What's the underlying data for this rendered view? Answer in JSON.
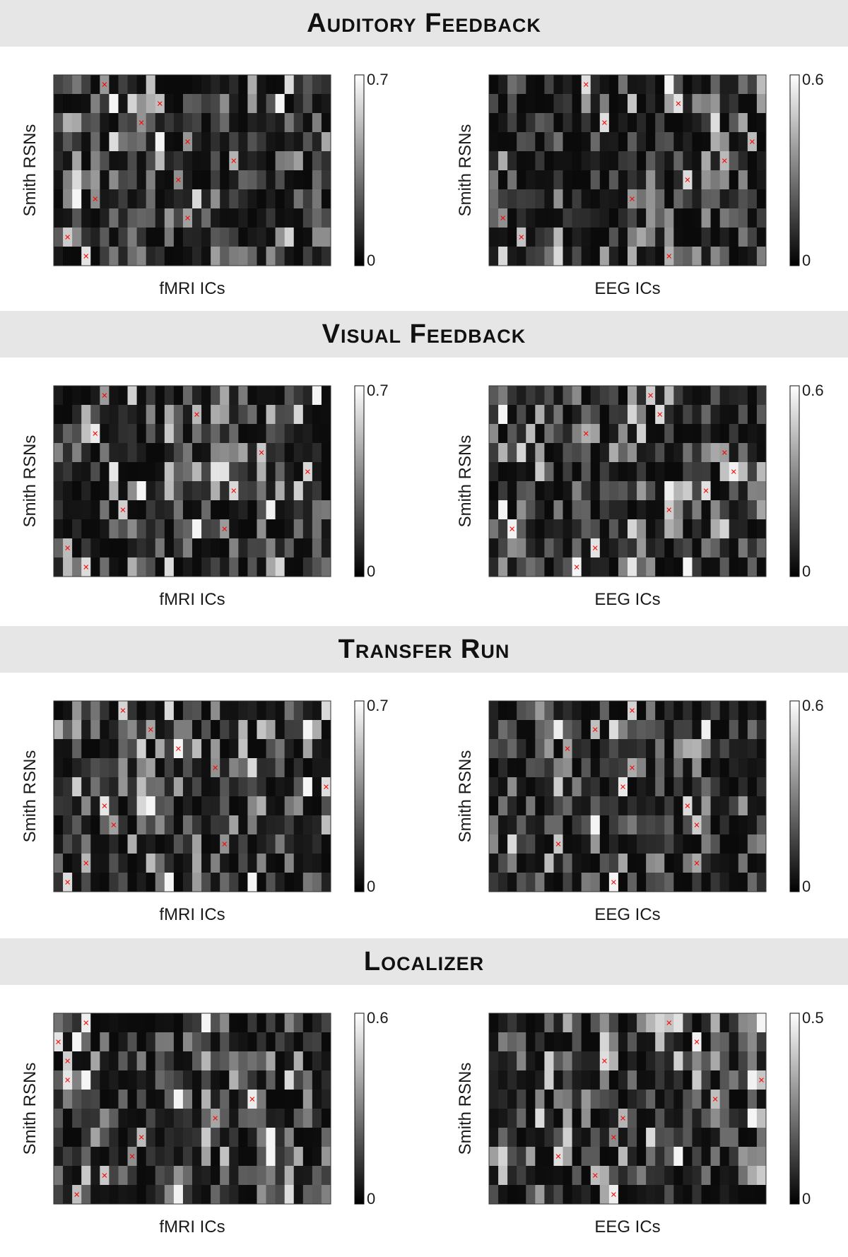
{
  "figure": {
    "sections": [
      {
        "title": "Auditory Feedback",
        "panels": [
          {
            "xlabel": "fMRI ICs",
            "ylabel": "Smith RSNs",
            "cb_max_label": "0.7",
            "cb_min_label": "0",
            "cb_max": 0.7,
            "cols": 30,
            "seed": 101,
            "marks": [
              [
                5,
                0
              ],
              [
                11,
                1
              ],
              [
                9,
                2
              ],
              [
                14,
                3
              ],
              [
                19,
                4
              ],
              [
                13,
                5
              ],
              [
                4,
                6
              ],
              [
                14,
                7
              ],
              [
                1,
                8
              ],
              [
                3,
                9
              ]
            ]
          },
          {
            "xlabel": "EEG ICs",
            "ylabel": "Smith RSNs",
            "cb_max_label": "0.6",
            "cb_min_label": "0",
            "cb_max": 0.6,
            "cols": 30,
            "seed": 202,
            "marks": [
              [
                10,
                0
              ],
              [
                20,
                1
              ],
              [
                12,
                2
              ],
              [
                28,
                3
              ],
              [
                25,
                4
              ],
              [
                21,
                5
              ],
              [
                15,
                6
              ],
              [
                1,
                7
              ],
              [
                3,
                8
              ],
              [
                19,
                9
              ]
            ]
          }
        ]
      },
      {
        "title": "Visual Feedback",
        "panels": [
          {
            "xlabel": "fMRI ICs",
            "ylabel": "Smith RSNs",
            "cb_max_label": "0.7",
            "cb_min_label": "0",
            "cb_max": 0.7,
            "cols": 30,
            "seed": 303,
            "marks": [
              [
                5,
                0
              ],
              [
                15,
                1
              ],
              [
                4,
                2
              ],
              [
                22,
                3
              ],
              [
                27,
                4
              ],
              [
                19,
                5
              ],
              [
                7,
                6
              ],
              [
                18,
                7
              ],
              [
                1,
                8
              ],
              [
                3,
                9
              ]
            ]
          },
          {
            "xlabel": "EEG ICs",
            "ylabel": "Smith RSNs",
            "cb_max_label": "0.6",
            "cb_min_label": "0",
            "cb_max": 0.6,
            "cols": 30,
            "seed": 404,
            "marks": [
              [
                17,
                0
              ],
              [
                18,
                1
              ],
              [
                10,
                2
              ],
              [
                25,
                3
              ],
              [
                26,
                4
              ],
              [
                23,
                5
              ],
              [
                19,
                6
              ],
              [
                2,
                7
              ],
              [
                11,
                8
              ],
              [
                9,
                9
              ]
            ]
          }
        ]
      },
      {
        "title": "Transfer Run",
        "panels": [
          {
            "xlabel": "fMRI ICs",
            "ylabel": "Smith RSNs",
            "cb_max_label": "0.7",
            "cb_min_label": "0",
            "cb_max": 0.7,
            "cols": 30,
            "seed": 505,
            "marks": [
              [
                7,
                0
              ],
              [
                10,
                1
              ],
              [
                13,
                2
              ],
              [
                17,
                3
              ],
              [
                29,
                4
              ],
              [
                5,
                5
              ],
              [
                6,
                6
              ],
              [
                18,
                7
              ],
              [
                3,
                8
              ],
              [
                1,
                9
              ]
            ]
          },
          {
            "xlabel": "EEG ICs",
            "ylabel": "Smith RSNs",
            "cb_max_label": "0.6",
            "cb_min_label": "0",
            "cb_max": 0.6,
            "cols": 30,
            "seed": 606,
            "marks": [
              [
                15,
                0
              ],
              [
                11,
                1
              ],
              [
                8,
                2
              ],
              [
                15,
                3
              ],
              [
                14,
                4
              ],
              [
                21,
                5
              ],
              [
                22,
                6
              ],
              [
                7,
                7
              ],
              [
                22,
                8
              ],
              [
                13,
                9
              ]
            ]
          }
        ]
      },
      {
        "title": "Localizer",
        "panels": [
          {
            "xlabel": "fMRI ICs",
            "ylabel": "Smith RSNs",
            "cb_max_label": "0.6",
            "cb_min_label": "0",
            "cb_max": 0.6,
            "cols": 30,
            "seed": 707,
            "marks": [
              [
                3,
                0
              ],
              [
                0,
                1
              ],
              [
                1,
                2
              ],
              [
                1,
                3
              ],
              [
                21,
                4
              ],
              [
                17,
                5
              ],
              [
                9,
                6
              ],
              [
                8,
                7
              ],
              [
                5,
                8
              ],
              [
                2,
                9
              ]
            ]
          },
          {
            "xlabel": "EEG ICs",
            "ylabel": "Smith RSNs",
            "cb_max_label": "0.5",
            "cb_min_label": "0",
            "cb_max": 0.5,
            "cols": 30,
            "seed": 808,
            "marks": [
              [
                19,
                0
              ],
              [
                22,
                1
              ],
              [
                12,
                2
              ],
              [
                29,
                3
              ],
              [
                24,
                4
              ],
              [
                14,
                5
              ],
              [
                13,
                6
              ],
              [
                7,
                7
              ],
              [
                11,
                8
              ],
              [
                13,
                9
              ]
            ]
          }
        ]
      }
    ]
  },
  "chart_data": [
    {
      "type": "heatmap",
      "title": "Auditory Feedback",
      "xlabel": "fMRI ICs",
      "ylabel": "Smith RSNs",
      "colorbar_range": [
        0,
        0.7
      ],
      "colormap": "gray",
      "rows": 10,
      "cols": 30,
      "marker": "x",
      "marker_color": "#ff0000"
    },
    {
      "type": "heatmap",
      "title": "Auditory Feedback",
      "xlabel": "EEG ICs",
      "ylabel": "Smith RSNs",
      "colorbar_range": [
        0,
        0.6
      ],
      "colormap": "gray",
      "rows": 10,
      "cols": 30,
      "marker": "x",
      "marker_color": "#ff0000"
    },
    {
      "type": "heatmap",
      "title": "Visual Feedback",
      "xlabel": "fMRI ICs",
      "ylabel": "Smith RSNs",
      "colorbar_range": [
        0,
        0.7
      ],
      "colormap": "gray",
      "rows": 10,
      "cols": 30,
      "marker": "x",
      "marker_color": "#ff0000"
    },
    {
      "type": "heatmap",
      "title": "Visual Feedback",
      "xlabel": "EEG ICs",
      "ylabel": "Smith RSNs",
      "colorbar_range": [
        0,
        0.6
      ],
      "colormap": "gray",
      "rows": 10,
      "cols": 30,
      "marker": "x",
      "marker_color": "#ff0000"
    },
    {
      "type": "heatmap",
      "title": "Transfer Run",
      "xlabel": "fMRI ICs",
      "ylabel": "Smith RSNs",
      "colorbar_range": [
        0,
        0.7
      ],
      "colormap": "gray",
      "rows": 10,
      "cols": 30,
      "marker": "x",
      "marker_color": "#ff0000"
    },
    {
      "type": "heatmap",
      "title": "Transfer Run",
      "xlabel": "EEG ICs",
      "ylabel": "Smith RSNs",
      "colorbar_range": [
        0,
        0.6
      ],
      "colormap": "gray",
      "rows": 10,
      "cols": 30,
      "marker": "x",
      "marker_color": "#ff0000"
    },
    {
      "type": "heatmap",
      "title": "Localizer",
      "xlabel": "fMRI ICs",
      "ylabel": "Smith RSNs",
      "colorbar_range": [
        0,
        0.6
      ],
      "colormap": "gray",
      "rows": 10,
      "cols": 30,
      "marker": "x",
      "marker_color": "#ff0000"
    },
    {
      "type": "heatmap",
      "title": "Localizer",
      "xlabel": "EEG ICs",
      "ylabel": "Smith RSNs",
      "colorbar_range": [
        0,
        0.5
      ],
      "colormap": "gray",
      "rows": 10,
      "cols": 30,
      "marker": "x",
      "marker_color": "#ff0000"
    }
  ]
}
